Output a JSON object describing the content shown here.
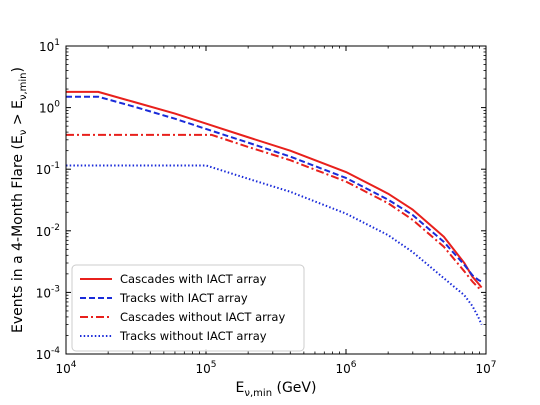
{
  "chart_data": {
    "type": "line",
    "xlabel": "E_{ν,min} (GeV)",
    "ylabel": "Events in a 4-Month Flare (E_ν > E_{ν,min})",
    "xscale": "log",
    "yscale": "log",
    "xlim": [
      10000,
      10000000
    ],
    "ylim": [
      0.0001,
      10
    ],
    "xticks": [
      {
        "value": 10000,
        "label": "10^4"
      },
      {
        "value": 100000,
        "label": "10^5"
      },
      {
        "value": 1000000,
        "label": "10^6"
      },
      {
        "value": 10000000,
        "label": "10^7"
      }
    ],
    "yticks": [
      {
        "value": 0.0001,
        "label": "10^-4"
      },
      {
        "value": 0.001,
        "label": "10^-3"
      },
      {
        "value": 0.01,
        "label": "10^-2"
      },
      {
        "value": 0.1,
        "label": "10^-1"
      },
      {
        "value": 1,
        "label": "10^0"
      },
      {
        "value": 10,
        "label": "10^1"
      }
    ],
    "legend_position": "lower-left",
    "series": [
      {
        "name": "Cascades with IACT array",
        "color": "#e8201c",
        "style": "solid",
        "x": [
          10000,
          17000,
          30000,
          60000,
          100000,
          200000,
          400000,
          1000000,
          2000000,
          3000000,
          5000000,
          7000000,
          8000000,
          8800000,
          9300000
        ],
        "y": [
          1.8,
          1.8,
          1.25,
          0.8,
          0.55,
          0.33,
          0.2,
          0.09,
          0.04,
          0.022,
          0.008,
          0.003,
          0.0018,
          0.0014,
          0.0012
        ]
      },
      {
        "name": "Tracks with IACT array",
        "color": "#1a2bd9",
        "style": "dashed",
        "x": [
          10000,
          17000,
          30000,
          60000,
          100000,
          200000,
          400000,
          1000000,
          2000000,
          3000000,
          5000000,
          7000000,
          8000000,
          8800000,
          9300000
        ],
        "y": [
          1.5,
          1.5,
          1.05,
          0.66,
          0.45,
          0.27,
          0.16,
          0.072,
          0.032,
          0.018,
          0.0066,
          0.0028,
          0.0019,
          0.0016,
          0.0015
        ]
      },
      {
        "name": "Cascades without IACT array",
        "color": "#e8201c",
        "style": "dashdot",
        "x": [
          10000,
          110000,
          200000,
          400000,
          1000000,
          2000000,
          3000000,
          5000000,
          7000000,
          8000000,
          8800000,
          9300000
        ],
        "y": [
          0.36,
          0.36,
          0.23,
          0.14,
          0.063,
          0.028,
          0.015,
          0.0055,
          0.0022,
          0.0015,
          0.0012,
          0.0011
        ]
      },
      {
        "name": "Tracks without IACT array",
        "color": "#1a2bd9",
        "style": "dotted",
        "x": [
          10000,
          100000,
          200000,
          400000,
          1000000,
          2000000,
          3000000,
          5000000,
          7000000,
          8000000,
          8800000,
          9300000
        ],
        "y": [
          0.115,
          0.115,
          0.07,
          0.043,
          0.019,
          0.0085,
          0.0045,
          0.0017,
          0.0009,
          0.0006,
          0.0004,
          0.0003
        ]
      }
    ]
  }
}
